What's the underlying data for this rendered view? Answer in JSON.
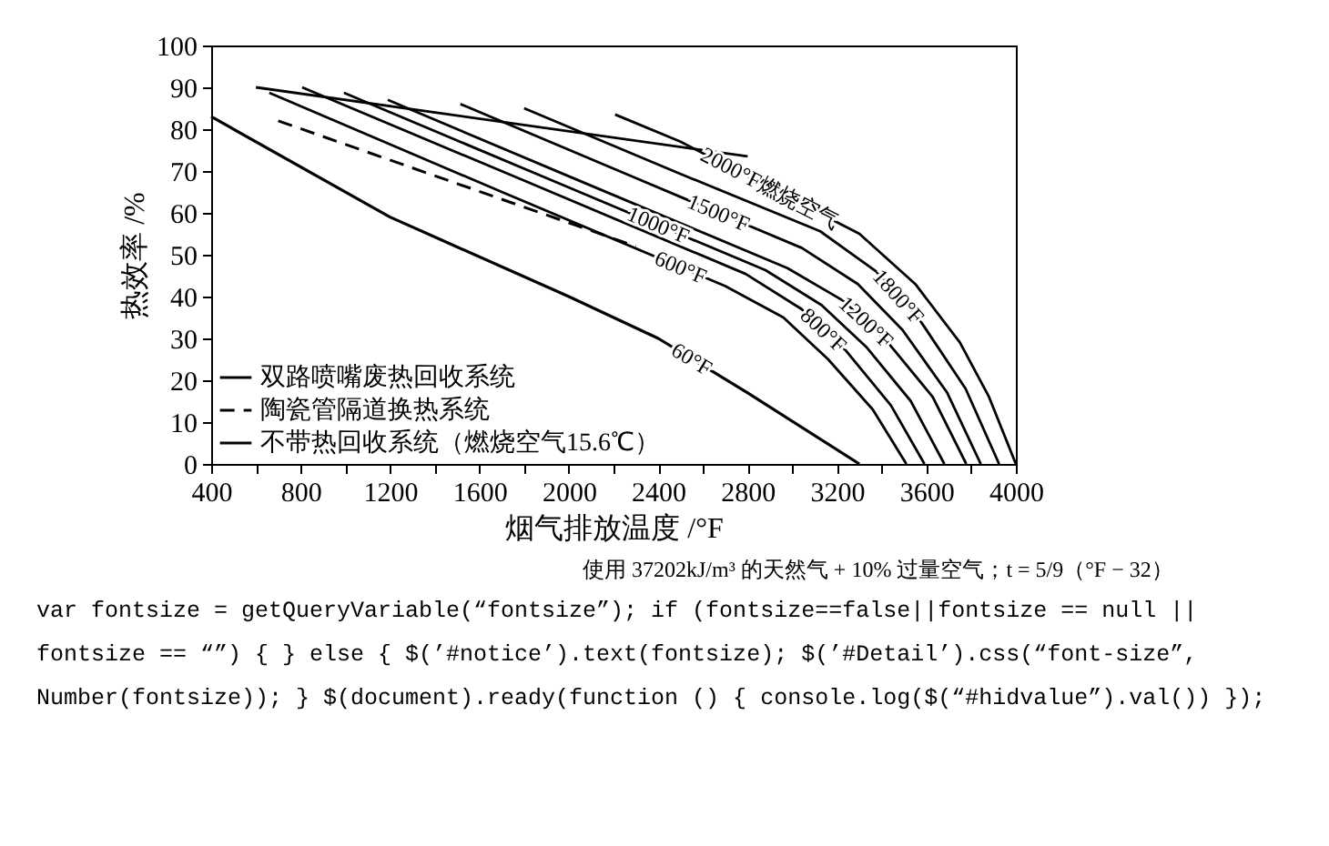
{
  "chart_data": {
    "type": "line",
    "xlabel": "烟气排放温度 /°F",
    "ylabel": "热效率 /%",
    "xlim": [
      400,
      4000
    ],
    "ylim": [
      0,
      100
    ],
    "xticks": [
      400,
      {
        "value": 600,
        "label": null
      },
      800,
      {
        "value": 1000,
        "label": null
      },
      1200,
      {
        "value": 1400,
        "label": null
      },
      1600,
      {
        "value": 1800,
        "label": null
      },
      2000,
      {
        "value": 2200,
        "label": null
      },
      2400,
      {
        "value": 2600,
        "label": null
      },
      2800,
      {
        "value": 3000,
        "label": null
      },
      3200,
      {
        "value": 3400,
        "label": null
      },
      3600,
      {
        "value": 3800,
        "label": null
      },
      4000
    ],
    "yticks": [
      0,
      10,
      20,
      30,
      40,
      50,
      60,
      70,
      80,
      90,
      100
    ],
    "grid": false,
    "legend": "bottom left",
    "series": [
      {
        "name": "双路喷嘴废热回收系统",
        "color": "#000000",
        "line_style": "solid",
        "x": [
          2207,
          2500,
          3300,
          3550,
          3750,
          3880,
          4000
        ],
        "values": [
          83.5,
          77,
          55,
          43,
          29,
          16,
          0
        ]
      },
      {
        "name": "陶瓷管隔道换热系统",
        "color": "#000000",
        "line_style": "dashed",
        "x": [
          700,
          1500,
          2300
        ],
        "values": [
          82,
          67,
          52
        ]
      },
      {
        "name": "不带热回收系统（燃烧空气15.6℃）",
        "color": "#000000",
        "line_style": "solid",
        "x": [
          400,
          1200,
          2000,
          2400,
          2800,
          3300
        ],
        "values": [
          83,
          59,
          40,
          30,
          17,
          0
        ]
      },
      {
        "color": "#000000",
        "line_style": "solid",
        "x": [
          600,
          2800
        ],
        "values": [
          90,
          73.5
        ]
      },
      {
        "color": "#000000",
        "line_style": "solid",
        "x": [
          1800,
          2500,
          3125,
          3375,
          3575,
          3775,
          3925
        ],
        "values": [
          85,
          69.3,
          55.6,
          46,
          34,
          18,
          0
        ]
      },
      {
        "color": "#000000",
        "line_style": "solid",
        "x": [
          1515,
          2300,
          3043,
          3293,
          3493,
          3693,
          3843
        ],
        "values": [
          86,
          68.3,
          51.6,
          43,
          32,
          17,
          0
        ]
      },
      {
        "color": "#000000",
        "line_style": "solid",
        "x": [
          1190,
          2100,
          2978,
          3228,
          3428,
          3628,
          3778
        ],
        "values": [
          87,
          66.5,
          46.8,
          39,
          29,
          16,
          0
        ]
      },
      {
        "color": "#000000",
        "line_style": "solid",
        "x": [
          994,
          1900,
          2880,
          3130,
          3330,
          3530,
          3680
        ],
        "values": [
          88.7,
          68.3,
          46.3,
          38,
          28,
          15,
          0
        ]
      },
      {
        "color": "#000000",
        "line_style": "solid",
        "x": [
          807,
          1800,
          2791,
          3041,
          3241,
          3441,
          3591
        ],
        "values": [
          90,
          67.7,
          45.4,
          37,
          27,
          14,
          0
        ]
      },
      {
        "color": "#000000",
        "line_style": "solid",
        "x": [
          660,
          1700,
          2700,
          2960,
          3160,
          3360,
          3510
        ],
        "values": [
          88.7,
          65,
          42.5,
          35,
          25,
          13,
          0
        ]
      }
    ],
    "annotations": [
      {
        "text": "2000°F燃烧空气",
        "x": 2900,
        "y": 66
      },
      {
        "text": "1800°F",
        "x": 3475,
        "y": 40
      },
      {
        "text": "1500°F",
        "x": 2670,
        "y": 60
      },
      {
        "text": "1200°F",
        "x": 3330,
        "y": 33.9
      },
      {
        "text": "1000°F",
        "x": 2400,
        "y": 57.1
      },
      {
        "text": "800°F",
        "x": 3140,
        "y": 32
      },
      {
        "text": "600°F",
        "x": 2500,
        "y": 47
      },
      {
        "text": "60°F",
        "x": 2550,
        "y": 25.1
      },
      "使用 37202kJ/m³ 的天然气 + 10% 过量空气；t = 5/9（°F − 32）",
      "var fontsize = getQueryVariable(“fontsize”); if (fontsize==false||fontsize == null || fontsize == “”) { } else { $(’#notice’).text(fontsize); $(’#Detail’).css(“font-size”, Number(fontsize)); } $(document).ready(function () { console.log($(“#hidvalue”).val()) });"
    ]
  }
}
